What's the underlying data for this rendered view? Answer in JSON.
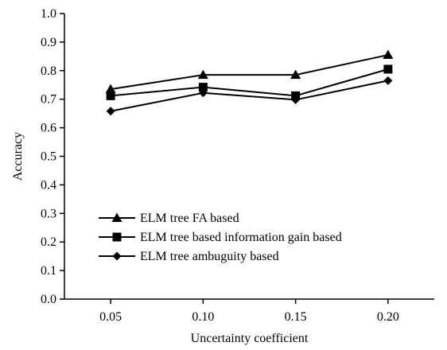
{
  "chart_data": {
    "type": "line",
    "title": "",
    "xlabel": "Uncertainty  coefficient",
    "ylabel": "Accuracy",
    "categories": [
      "0.05",
      "0.10",
      "0.15",
      "0.20"
    ],
    "x": [
      0.05,
      0.1,
      0.15,
      0.2
    ],
    "xlim": [
      0.025,
      0.225
    ],
    "ylim": [
      0.0,
      1.0
    ],
    "yticks": [
      "0.0",
      "0.1",
      "0.2",
      "0.3",
      "0.4",
      "0.5",
      "0.6",
      "0.7",
      "0.8",
      "0.9",
      "1.0"
    ],
    "grid": false,
    "legend_position": "lower-left",
    "series": [
      {
        "name": "ELM tree FA based",
        "marker": "triangle",
        "values": [
          0.735,
          0.785,
          0.785,
          0.855
        ]
      },
      {
        "name": "ELM tree based information gain based",
        "marker": "square",
        "values": [
          0.712,
          0.742,
          0.712,
          0.805
        ]
      },
      {
        "name": "ELM tree ambuguity based",
        "marker": "diamond",
        "values": [
          0.658,
          0.722,
          0.698,
          0.765
        ]
      }
    ]
  }
}
